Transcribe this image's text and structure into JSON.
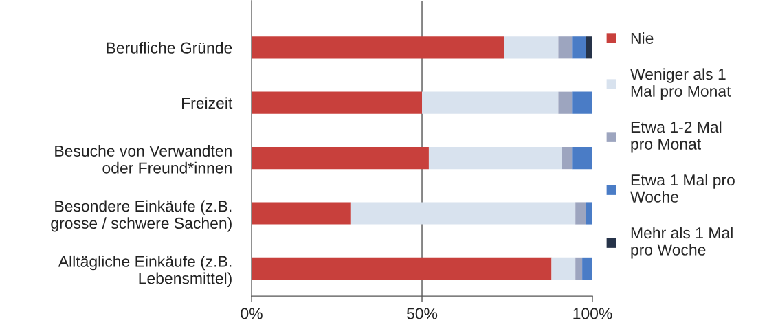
{
  "chart_data": {
    "type": "bar",
    "orientation": "horizontal",
    "stacked": true,
    "categories": [
      "Berufliche Gründe",
      "Freizeit",
      "Besuche von Verwandten\noder Freund*innen",
      "Besondere Einkäufe (z.B.\ngrosse / schwere Sachen)",
      "Alltägliche Einkäufe (z.B.\nLebensmittel)"
    ],
    "series": [
      {
        "name": "Nie",
        "color": "#c8403c",
        "values": [
          74,
          50,
          52,
          29,
          88
        ]
      },
      {
        "name": "Weniger als 1\nMal pro Monat",
        "color": "#d8e2ee",
        "values": [
          16,
          40,
          39,
          66,
          7
        ]
      },
      {
        "name": "Etwa 1-2 Mal\npro Monat",
        "color": "#9da5bf",
        "values": [
          4,
          4,
          3,
          3,
          2
        ]
      },
      {
        "name": "Etwa 1 Mal pro\nWoche",
        "color": "#4a7cc6",
        "values": [
          4,
          6,
          6,
          2,
          3
        ]
      },
      {
        "name": "Mehr als 1 Mal\npro Woche",
        "color": "#263349",
        "values": [
          2,
          0,
          0,
          0,
          0
        ]
      }
    ],
    "xlim": [
      0,
      100
    ],
    "xticks": [
      {
        "value": 0,
        "label": "0%"
      },
      {
        "value": 50,
        "label": "50%"
      },
      {
        "value": 100,
        "label": "100%"
      }
    ],
    "grid": "x",
    "legend": "right"
  }
}
